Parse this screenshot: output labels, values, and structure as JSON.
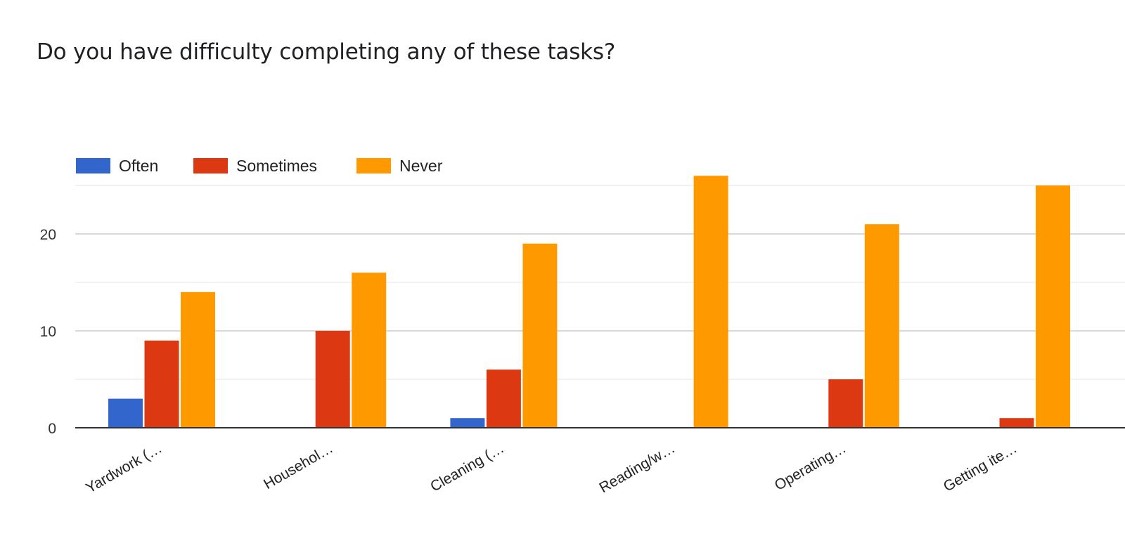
{
  "chart_data": {
    "type": "bar",
    "title": "Do you have difficulty completing any of these tasks?",
    "categories": [
      "Yardwork (…",
      "Househol…",
      "Cleaning (…",
      "Reading/w…",
      "Operating…",
      "Getting ite…"
    ],
    "series": [
      {
        "name": "Often",
        "color": "#3366cc",
        "values": [
          3,
          0,
          1,
          0,
          0,
          0
        ]
      },
      {
        "name": "Sometimes",
        "color": "#dc3912",
        "values": [
          9,
          10,
          6,
          0,
          5,
          1
        ]
      },
      {
        "name": "Never",
        "color": "#ff9900",
        "values": [
          14,
          16,
          19,
          26,
          21,
          25
        ]
      }
    ],
    "yticks": [
      "0",
      "10",
      "20"
    ],
    "ylim": [
      0,
      25
    ],
    "grid": true,
    "legend": "top-left"
  }
}
